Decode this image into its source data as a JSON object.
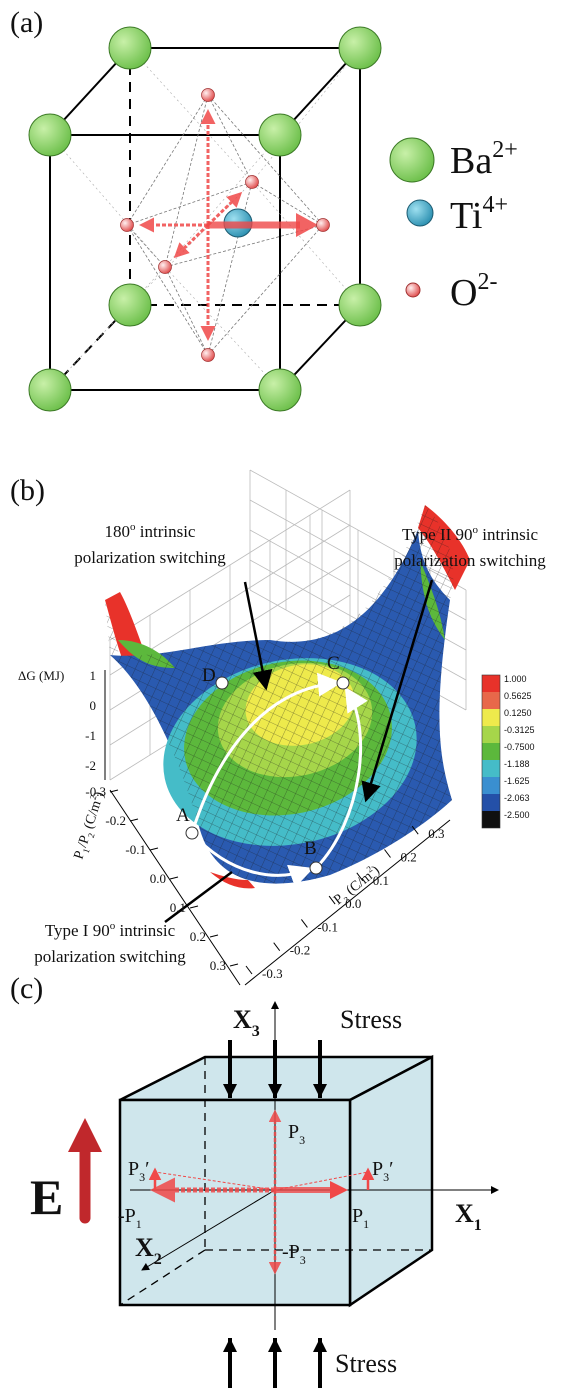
{
  "panel_a": {
    "label": "(a)",
    "legend": [
      [
        {
          "text": "Ba"
        },
        {
          "sup": "2+"
        }
      ],
      [
        {
          "text": "Ti"
        },
        {
          "sup": "4+"
        }
      ],
      [
        {
          "text": "O"
        },
        {
          "sup": "2-"
        }
      ]
    ]
  },
  "panel_b": {
    "label": "(b)",
    "annotations": {
      "switch_180": [
        [
          {
            "text": "180"
          },
          {
            "sup": "o"
          },
          {
            "text": " intrinsic"
          }
        ],
        [
          {
            "text": "polarization switching"
          }
        ]
      ],
      "type_ii": [
        [
          {
            "text": "Type II 90"
          },
          {
            "sup": "o"
          },
          {
            "text": " intrinsic"
          }
        ],
        [
          {
            "text": "polarization switching"
          }
        ]
      ],
      "type_i": [
        [
          {
            "text": "Type I 90"
          },
          {
            "sup": "o"
          },
          {
            "text": " intrinsic"
          }
        ],
        [
          {
            "text": "polarization switching"
          }
        ]
      ]
    },
    "z_axis": {
      "title": [
        {
          "text": "ΔG (MJ)"
        }
      ],
      "ticks": [
        "1",
        "0",
        "-1",
        "-2"
      ]
    },
    "p12_axis": {
      "title": [
        {
          "text": "P"
        },
        {
          "sub": "1"
        },
        {
          "text": "/P"
        },
        {
          "sub": "2"
        },
        {
          "text": " (C/m"
        },
        {
          "sup": "2"
        },
        {
          "text": ")"
        }
      ],
      "ticks": [
        "-0.3",
        "-0.2",
        "-0.1",
        "0.0",
        "0.1",
        "0.2",
        "0.3"
      ]
    },
    "p3_axis": {
      "title": [
        {
          "text": "P"
        },
        {
          "sub": "3"
        },
        {
          "text": " (C/m"
        },
        {
          "sup": "2"
        },
        {
          "text": ")"
        }
      ],
      "ticks": [
        "-0.3",
        "-0.2",
        "-0.1",
        "0.0",
        "0.1",
        "0.2",
        "0.3"
      ]
    },
    "points": [
      "A",
      "B",
      "C",
      "D"
    ],
    "colorbar": {
      "labels": [
        "1.000",
        "0.5625",
        "0.1250",
        "-0.3125",
        "-0.7500",
        "-1.188",
        "-1.625",
        "-2.063",
        "-2.500"
      ],
      "colors": [
        "#e8322a",
        "#e8684a",
        "#eeea4c",
        "#a6d64a",
        "#5cb83c",
        "#45bcc8",
        "#3a8fd0",
        "#2450a8",
        "#101010"
      ]
    }
  },
  "panel_c": {
    "label": "(c)",
    "stress_top": "Stress",
    "stress_bottom": "Stress",
    "field": "E",
    "axes": {
      "x1": [
        {
          "text": "X"
        },
        {
          "sub": "1"
        }
      ],
      "x2": [
        {
          "text": "X"
        },
        {
          "sub": "2"
        }
      ],
      "x3": [
        {
          "text": "X"
        },
        {
          "sub": "3"
        }
      ]
    },
    "polarization": {
      "p3": [
        {
          "text": "P"
        },
        {
          "sub": "3"
        }
      ],
      "neg_p3": [
        {
          "text": "-P"
        },
        {
          "sub": "3"
        }
      ],
      "p1": [
        {
          "text": "P"
        },
        {
          "sub": "1"
        }
      ],
      "neg_p1": [
        {
          "text": "-P"
        },
        {
          "sub": "1"
        }
      ],
      "p3_prime_left": [
        {
          "text": "P"
        },
        {
          "sub": "3"
        },
        {
          "text": "′"
        }
      ],
      "p3_prime_right": [
        {
          "text": "P"
        },
        {
          "sub": "3"
        },
        {
          "text": "′"
        }
      ]
    }
  }
}
